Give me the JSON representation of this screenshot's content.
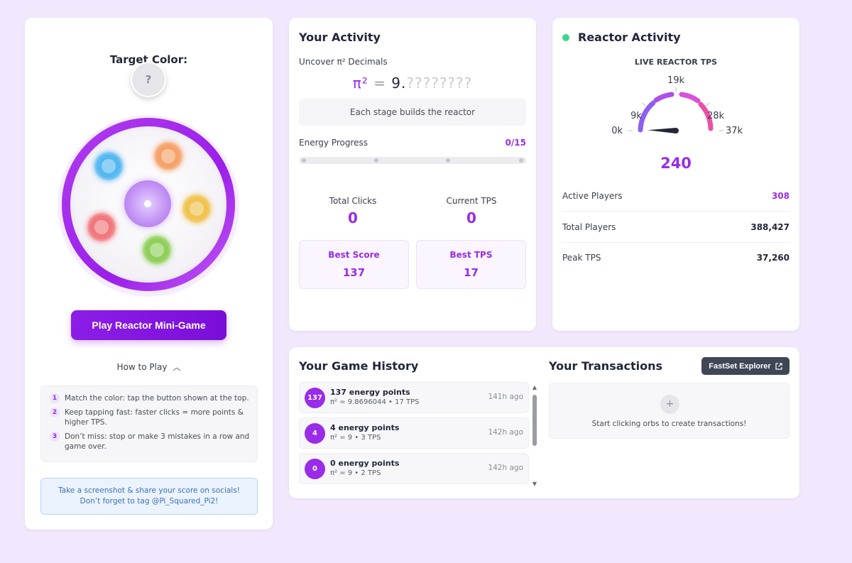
{
  "left": {
    "target_title": "Target Color:",
    "target_symbol": "?",
    "orb_colors": [
      "#55b8f0",
      "#f5a36a",
      "#f0c452",
      "#8fcf5a",
      "#f0787d"
    ],
    "play_label": "Play Reactor Mini-Game",
    "how_to_label": "How to Play",
    "rules": [
      {
        "num": "1",
        "text": "Match the color: tap the button shown at the top."
      },
      {
        "num": "2",
        "text": "Keep tapping fast: faster clicks = more points & higher TPS."
      },
      {
        "num": "3",
        "text": "Don’t miss: stop or make 3 mistakes in a row and game over."
      }
    ],
    "share_text": "Take a screenshot & share your score on socials! Don’t forget to tag @Pi_Squared_Pi2!"
  },
  "activity": {
    "title": "Your Activity",
    "uncover_label": "Uncover π² Decimals",
    "pi_symbol": "π²",
    "pi_equals": "=",
    "pi_integer": "9",
    "pi_dot": ".",
    "pi_hidden": "????????",
    "stage_text": "Each stage builds the reactor",
    "energy_label": "Energy Progress",
    "energy_count": "0/15",
    "energy_progress": 0,
    "total_clicks_label": "Total Clicks",
    "total_clicks": "0",
    "current_tps_label": "Current TPS",
    "current_tps": "0",
    "best_score_label": "Best Score",
    "best_score": "137",
    "best_tps_label": "Best TPS",
    "best_tps": "17"
  },
  "reactor": {
    "title": "Reactor Activity",
    "status_color": "#3fd58a",
    "gauge_title": "LIVE REACTOR TPS",
    "gauge_ticks": [
      "0k",
      "9k",
      "19k",
      "28k",
      "37k"
    ],
    "gauge_min": 0,
    "gauge_max": 37260,
    "gauge_value": 240,
    "gauge_value_label": "240",
    "rows": [
      {
        "label": "Active Players",
        "value": "308"
      },
      {
        "label": "Total Players",
        "value": "388,427"
      },
      {
        "label": "Peak TPS",
        "value": "37,260"
      }
    ]
  },
  "history": {
    "title": "Your Game History",
    "items": [
      {
        "badge": "137",
        "title": "137 energy points",
        "sub": "π² = 9.8696044 • 17 TPS",
        "time": "141h ago"
      },
      {
        "badge": "4",
        "title": "4 energy points",
        "sub": "π² = 9 • 3 TPS",
        "time": "142h ago"
      },
      {
        "badge": "0",
        "title": "0 energy points",
        "sub": "π² = 9 • 2 TPS",
        "time": "142h ago"
      }
    ]
  },
  "transactions": {
    "title": "Your Transactions",
    "explorer_label": "FastSet Explorer",
    "empty_icon": "+",
    "empty_text": "Start clicking orbs to create transactions!"
  },
  "colors": {
    "accent": "#9a2be8",
    "background": "#f1e8fd"
  }
}
